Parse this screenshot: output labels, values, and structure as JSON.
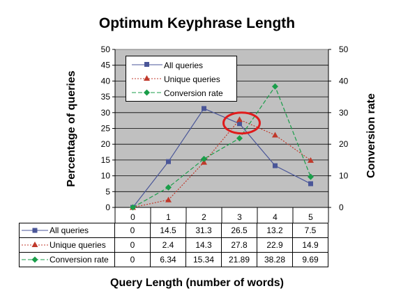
{
  "chart_data": {
    "type": "line",
    "title": "Optimum Keyphrase Length",
    "xlabel": "Query Length (number of words)",
    "ylabel": "Percentage of queries",
    "ylabel_right": "Conversion rate",
    "categories": [
      "0",
      "1",
      "2",
      "3",
      "4",
      "5"
    ],
    "ylim": [
      0,
      50
    ],
    "y_ticks": [
      "0",
      "5",
      "10",
      "15",
      "20",
      "25",
      "30",
      "35",
      "40",
      "45",
      "50"
    ],
    "y2lim": [
      0,
      50
    ],
    "y2_ticks": [
      "0",
      "10",
      "20",
      "30",
      "40",
      "50"
    ],
    "grid": true,
    "legend_position": "top-left",
    "series": [
      {
        "name": "All queries",
        "axis": "left",
        "values": [
          0,
          14.5,
          31.3,
          26.5,
          13.2,
          7.5
        ],
        "labels": [
          "0",
          "14.5",
          "31.3",
          "26.5",
          "13.2",
          "7.5"
        ],
        "color": "#4a5698",
        "marker": "square",
        "dash": "solid"
      },
      {
        "name": "Unique queries",
        "axis": "left",
        "values": [
          0,
          2.4,
          14.3,
          27.8,
          22.9,
          14.9
        ],
        "labels": [
          "0",
          "2.4",
          "14.3",
          "27.8",
          "22.9",
          "14.9"
        ],
        "color": "#c0392b",
        "marker": "triangle",
        "dash": "dotted"
      },
      {
        "name": "Conversion rate",
        "axis": "right",
        "values": [
          0,
          6.34,
          15.34,
          21.89,
          38.28,
          9.69
        ],
        "labels": [
          "0",
          "6.34",
          "15.34",
          "21.89",
          "38.28",
          "9.69"
        ],
        "color": "#1a9e4a",
        "marker": "diamond",
        "dash": "dashed"
      }
    ],
    "annotation": {
      "type": "circle",
      "category": "3",
      "value": 26.5,
      "color": "#e01b1b"
    }
  }
}
